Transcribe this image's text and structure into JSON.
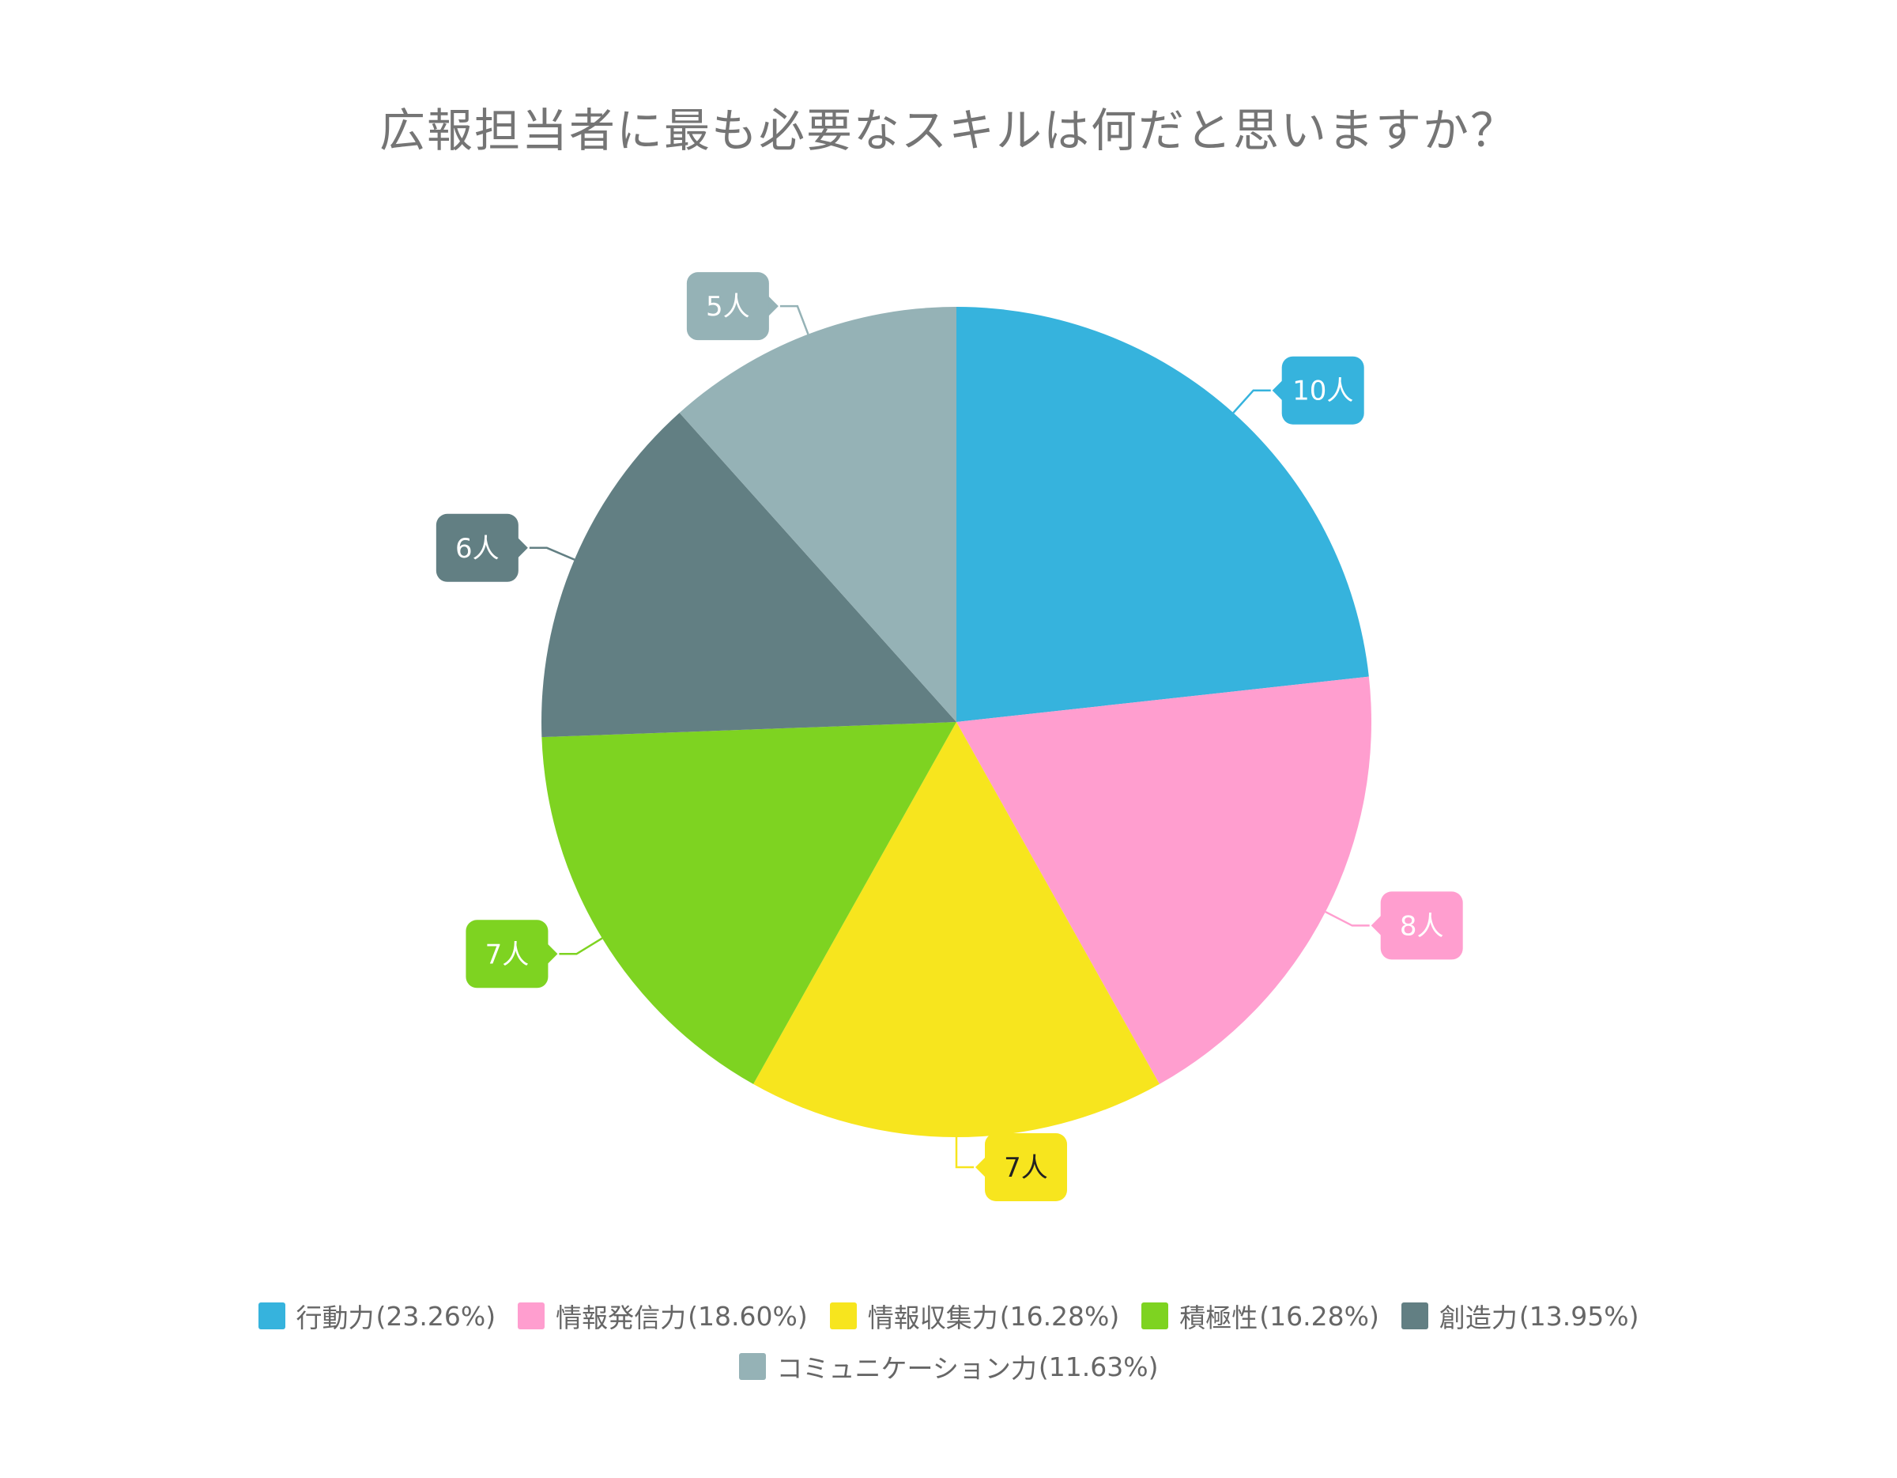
{
  "chart_data": {
    "type": "pie",
    "title": "広報担当者に最も必要なスキルは何だと思いますか？",
    "unit": "人",
    "slices": [
      {
        "label": "行動力",
        "value": 10,
        "percent": "23.26%",
        "data_label": "10人",
        "color": "#36B3DD",
        "label_text_color": "#ffffff"
      },
      {
        "label": "情報発信力",
        "value": 8,
        "percent": "18.60%",
        "data_label": "8人",
        "color": "#FF9ECF",
        "label_text_color": "#ffffff"
      },
      {
        "label": "情報収集力",
        "value": 7,
        "percent": "16.28%",
        "data_label": "7人",
        "color": "#F7E51E",
        "label_text_color": "#222222"
      },
      {
        "label": "積極性",
        "value": 7,
        "percent": "16.28%",
        "data_label": "7人",
        "color": "#7ED321",
        "label_text_color": "#ffffff"
      },
      {
        "label": "創造力",
        "value": 6,
        "percent": "13.95%",
        "data_label": "6人",
        "color": "#627F83",
        "label_text_color": "#ffffff"
      },
      {
        "label": "コミュニケーション力",
        "value": 5,
        "percent": "11.63%",
        "data_label": "5人",
        "color": "#95B2B6",
        "label_text_color": "#ffffff"
      }
    ],
    "legend_position": "bottom"
  }
}
